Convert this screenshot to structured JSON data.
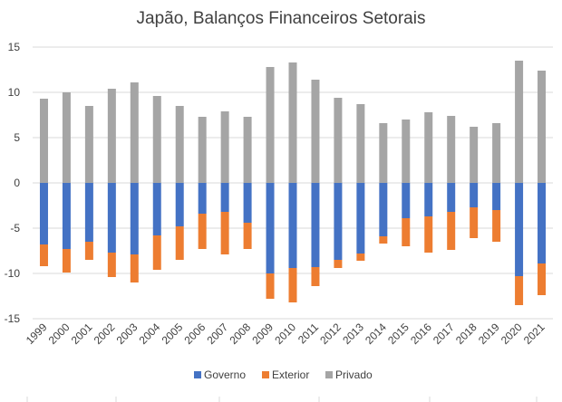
{
  "chart_data": {
    "type": "bar",
    "stacked": true,
    "title": "Japão, Balanços Financeiros Setorais",
    "xlabel": "",
    "ylabel": "",
    "categories": [
      "1999",
      "2000",
      "2001",
      "2002",
      "2003",
      "2004",
      "2005",
      "2006",
      "2007",
      "2008",
      "2009",
      "2010",
      "2011",
      "2012",
      "2013",
      "2014",
      "2015",
      "2016",
      "2017",
      "2018",
      "2019",
      "2020",
      "2021"
    ],
    "ylim": [
      -15,
      15
    ],
    "yticks": [
      15,
      10,
      5,
      0,
      -5,
      -10,
      -15
    ],
    "ytick_labels": [
      "15",
      "10",
      "5",
      "0",
      "-5",
      "-10",
      "-15"
    ],
    "grid": true,
    "legend": "bottom",
    "series": [
      {
        "name": "Governo",
        "color": "#4472C4",
        "values": [
          -6.8,
          -7.3,
          -6.5,
          -7.7,
          -7.9,
          -5.8,
          -4.8,
          -3.4,
          -3.2,
          -4.4,
          -10.0,
          -9.4,
          -9.3,
          -8.5,
          -7.8,
          -5.9,
          -3.9,
          -3.7,
          -3.2,
          -2.7,
          -3.0,
          -10.3,
          -8.9
        ]
      },
      {
        "name": "Exterior",
        "color": "#ED7D31",
        "values": [
          -2.4,
          -2.6,
          -2.0,
          -2.7,
          -3.1,
          -3.8,
          -3.7,
          -3.9,
          -4.7,
          -2.9,
          -2.8,
          -3.8,
          -2.1,
          -0.9,
          -0.8,
          -0.8,
          -3.1,
          -4.0,
          -4.2,
          -3.4,
          -3.5,
          -3.2,
          -3.5
        ]
      },
      {
        "name": "Privado",
        "color": "#A5A5A5",
        "values": [
          9.3,
          10.0,
          8.5,
          10.4,
          11.1,
          9.6,
          8.5,
          7.3,
          7.9,
          7.3,
          12.8,
          13.3,
          11.4,
          9.4,
          8.7,
          6.6,
          7.0,
          7.8,
          7.4,
          6.2,
          6.6,
          13.5,
          12.4
        ]
      }
    ]
  }
}
